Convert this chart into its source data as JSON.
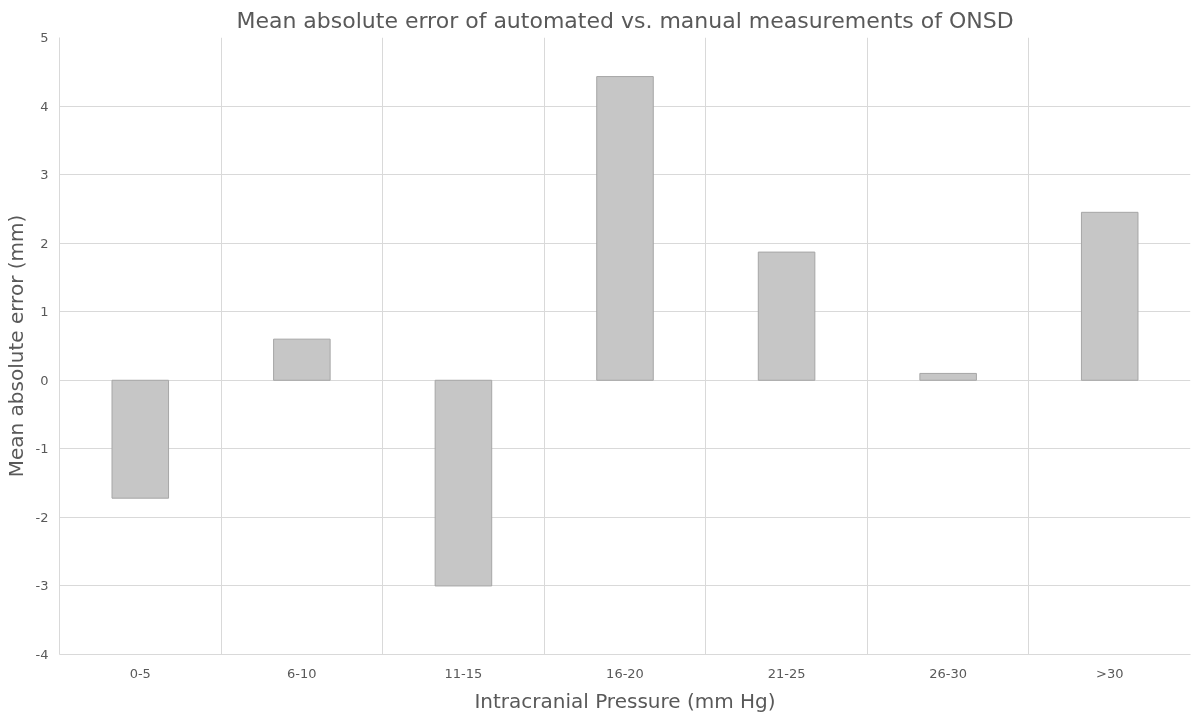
{
  "chart_data": {
    "type": "bar",
    "title": "Mean absolute error of automated vs. manual measurements of ONSD",
    "xlabel": "Intracranial Pressure (mm Hg)",
    "ylabel": "Mean absolute error (mm)",
    "categories": [
      "0-5",
      "6-10",
      "11-15",
      "16-20",
      "21-25",
      "26-30",
      ">30"
    ],
    "values": [
      -1.72,
      0.6,
      -3.0,
      4.43,
      1.87,
      0.1,
      2.45
    ],
    "color": "#c6c6c6",
    "ylim": [
      -4,
      5
    ],
    "yticks": [
      -4,
      -3,
      -2,
      -1,
      0,
      1,
      2,
      3,
      4,
      5
    ],
    "grid": true
  }
}
